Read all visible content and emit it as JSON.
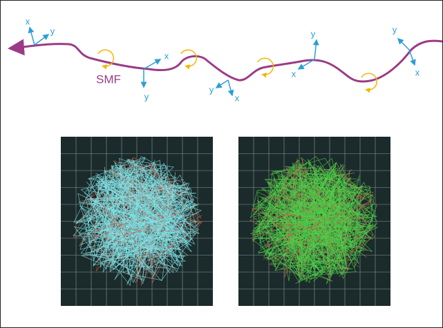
{
  "fiber_label": "SMF",
  "frames": [
    {
      "x": "x",
      "y": "y"
    },
    {
      "x": "x",
      "y": "y"
    },
    {
      "x": "x",
      "y": "y"
    },
    {
      "x": "x",
      "y": "y"
    },
    {
      "x": "x",
      "y": "y"
    }
  ]
}
